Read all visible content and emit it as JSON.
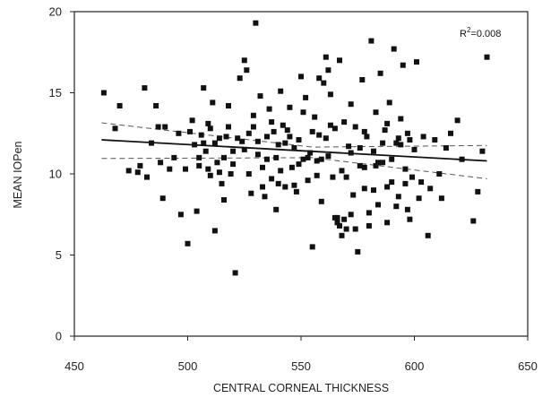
{
  "chart_data": {
    "type": "scatter",
    "xlabel": "CENTRAL CORNEAL THICKNESS",
    "ylabel": "MEAN IOPen",
    "annotation": {
      "r2_prefix": "R",
      "r2_exp": "2",
      "r2_value": "=0.008"
    },
    "xlim": [
      450,
      650
    ],
    "ylim": [
      0,
      20
    ],
    "xticks": [
      450,
      500,
      550,
      600,
      650
    ],
    "yticks": [
      0,
      5,
      10,
      15,
      20
    ],
    "grid": false,
    "regression": {
      "x": [
        462,
        632
      ],
      "y": [
        12.1,
        10.8
      ]
    },
    "ci_upper": {
      "x": [
        462,
        555,
        632
      ],
      "y": [
        13.15,
        11.65,
        11.75
      ]
    },
    "ci_lower": {
      "x": [
        462,
        555,
        632
      ],
      "y": [
        10.95,
        11.0,
        9.7
      ]
    },
    "points": [
      [
        463,
        15.0
      ],
      [
        468,
        12.8
      ],
      [
        470,
        14.2
      ],
      [
        474,
        10.2
      ],
      [
        478,
        10.1
      ],
      [
        479,
        10.5
      ],
      [
        481,
        15.3
      ],
      [
        482,
        9.8
      ],
      [
        484,
        11.9
      ],
      [
        486,
        14.2
      ],
      [
        487,
        12.9
      ],
      [
        488,
        10.7
      ],
      [
        489,
        8.5
      ],
      [
        490,
        12.9
      ],
      [
        492,
        10.3
      ],
      [
        494,
        11.0
      ],
      [
        496,
        12.5
      ],
      [
        497,
        7.5
      ],
      [
        499,
        10.3
      ],
      [
        500,
        5.7
      ],
      [
        501,
        12.6
      ],
      [
        502,
        13.3
      ],
      [
        503,
        11.8
      ],
      [
        504,
        7.7
      ],
      [
        505,
        10.5
      ],
      [
        506,
        12.4
      ],
      [
        507,
        15.3
      ],
      [
        508,
        11.4
      ],
      [
        509,
        13.1
      ],
      [
        510,
        12.8
      ],
      [
        511,
        14.4
      ],
      [
        512,
        6.5
      ],
      [
        513,
        10.7
      ],
      [
        514,
        12.2
      ],
      [
        515,
        9.4
      ],
      [
        516,
        11.0
      ],
      [
        517,
        12.3
      ],
      [
        518,
        14.2
      ],
      [
        519,
        10.0
      ],
      [
        520,
        11.4
      ],
      [
        521,
        3.9
      ],
      [
        522,
        12.2
      ],
      [
        523,
        15.9
      ],
      [
        524,
        12.0
      ],
      [
        525,
        17.0
      ],
      [
        526,
        16.4
      ],
      [
        527,
        12.5
      ],
      [
        528,
        8.8
      ],
      [
        529,
        12.9
      ],
      [
        530,
        19.3
      ],
      [
        531,
        11.2
      ],
      [
        532,
        14.8
      ],
      [
        533,
        10.4
      ],
      [
        534,
        8.6
      ],
      [
        535,
        12.3
      ],
      [
        536,
        14.0
      ],
      [
        537,
        9.7
      ],
      [
        538,
        12.6
      ],
      [
        539,
        7.8
      ],
      [
        540,
        11.8
      ],
      [
        541,
        15.1
      ],
      [
        542,
        13.0
      ],
      [
        543,
        9.2
      ],
      [
        544,
        12.7
      ],
      [
        545,
        14.1
      ],
      [
        546,
        10.4
      ],
      [
        547,
        11.6
      ],
      [
        548,
        8.9
      ],
      [
        549,
        12.1
      ],
      [
        550,
        16.0
      ],
      [
        551,
        10.9
      ],
      [
        552,
        14.7
      ],
      [
        553,
        9.6
      ],
      [
        554,
        11.3
      ],
      [
        555,
        5.5
      ],
      [
        556,
        13.5
      ],
      [
        557,
        10.8
      ],
      [
        558,
        12.4
      ],
      [
        559,
        8.3
      ],
      [
        560,
        15.6
      ],
      [
        561,
        17.2
      ],
      [
        562,
        11.1
      ],
      [
        563,
        14.9
      ],
      [
        564,
        9.8
      ],
      [
        565,
        12.8
      ],
      [
        566,
        7.3
      ],
      [
        567,
        17.0
      ],
      [
        568,
        10.2
      ],
      [
        569,
        13.2
      ],
      [
        570,
        6.6
      ],
      [
        571,
        11.7
      ],
      [
        572,
        14.3
      ],
      [
        573,
        8.7
      ],
      [
        574,
        12.9
      ],
      [
        575,
        5.2
      ],
      [
        576,
        10.5
      ],
      [
        577,
        15.8
      ],
      [
        578,
        9.1
      ],
      [
        579,
        12.3
      ],
      [
        580,
        7.6
      ],
      [
        581,
        18.2
      ],
      [
        582,
        11.4
      ],
      [
        583,
        13.8
      ],
      [
        584,
        8.1
      ],
      [
        585,
        16.2
      ],
      [
        586,
        10.7
      ],
      [
        587,
        12.7
      ],
      [
        588,
        7.0
      ],
      [
        589,
        14.4
      ],
      [
        590,
        9.5
      ],
      [
        591,
        17.7
      ],
      [
        592,
        11.9
      ],
      [
        593,
        8.6
      ],
      [
        594,
        13.4
      ],
      [
        595,
        16.7
      ],
      [
        596,
        10.3
      ],
      [
        597,
        12.5
      ],
      [
        598,
        7.2
      ],
      [
        599,
        9.8
      ],
      [
        600,
        11.5
      ],
      [
        601,
        16.9
      ],
      [
        602,
        8.5
      ],
      [
        604,
        12.3
      ],
      [
        606,
        6.2
      ],
      [
        607,
        9.1
      ],
      [
        609,
        12.1
      ],
      [
        611,
        10.0
      ],
      [
        612,
        8.5
      ],
      [
        614,
        11.6
      ],
      [
        616,
        12.5
      ],
      [
        619,
        13.3
      ],
      [
        621,
        10.9
      ],
      [
        626,
        7.1
      ],
      [
        628,
        8.9
      ],
      [
        630,
        11.4
      ],
      [
        632,
        17.2
      ],
      [
        565,
        7.3
      ],
      [
        566,
        7.0
      ],
      [
        567,
        6.8
      ],
      [
        568,
        6.2
      ],
      [
        569,
        7.2
      ],
      [
        570,
        9.8
      ],
      [
        572,
        7.5
      ],
      [
        574,
        6.6
      ],
      [
        576,
        11.6
      ],
      [
        578,
        10.4
      ],
      [
        580,
        6.8
      ],
      [
        582,
        9.0
      ],
      [
        584,
        10.7
      ],
      [
        586,
        11.9
      ],
      [
        588,
        9.2
      ],
      [
        590,
        10.9
      ],
      [
        592,
        8.0
      ],
      [
        594,
        11.8
      ],
      [
        596,
        9.4
      ],
      [
        598,
        12.1
      ],
      [
        545,
        12.3
      ],
      [
        547,
        9.3
      ],
      [
        549,
        10.6
      ],
      [
        551,
        13.8
      ],
      [
        553,
        11.0
      ],
      [
        555,
        12.6
      ],
      [
        557,
        9.9
      ],
      [
        559,
        10.9
      ],
      [
        561,
        12.2
      ],
      [
        563,
        13.0
      ],
      [
        525,
        11.5
      ],
      [
        527,
        10.0
      ],
      [
        529,
        13.6
      ],
      [
        531,
        12.0
      ],
      [
        533,
        9.2
      ],
      [
        535,
        10.9
      ],
      [
        537,
        13.2
      ],
      [
        539,
        11.0
      ],
      [
        541,
        10.2
      ],
      [
        543,
        11.9
      ],
      [
        510,
        9.9
      ],
      [
        512,
        11.9
      ],
      [
        514,
        10.1
      ],
      [
        516,
        8.4
      ],
      [
        518,
        12.9
      ],
      [
        520,
        10.6
      ],
      [
        505,
        11.0
      ],
      [
        507,
        11.9
      ],
      [
        509,
        10.3
      ],
      [
        540,
        9.4
      ],
      [
        558,
        15.9
      ],
      [
        562,
        16.4
      ],
      [
        572,
        11.3
      ],
      [
        578,
        12.6
      ],
      [
        583,
        10.5
      ],
      [
        588,
        13.1
      ],
      [
        593,
        12.2
      ],
      [
        597,
        7.8
      ],
      [
        603,
        9.5
      ]
    ]
  }
}
